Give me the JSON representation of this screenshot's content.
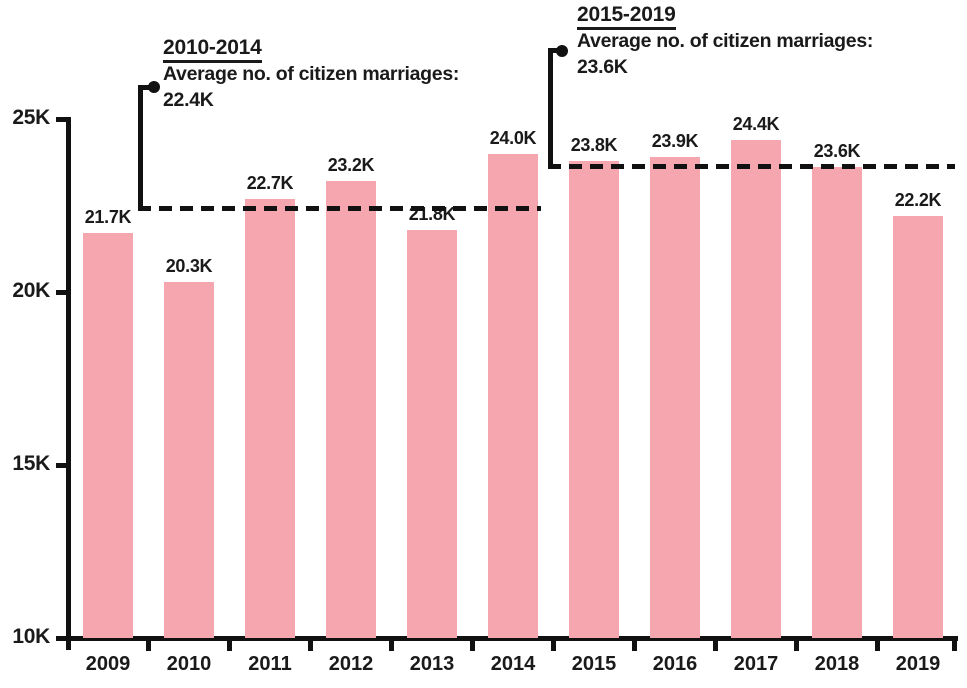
{
  "page": {
    "background": "#ffffff"
  },
  "chart_data": {
    "type": "bar",
    "title": "",
    "xlabel": "",
    "ylabel": "",
    "categories": [
      "2009",
      "2010",
      "2011",
      "2012",
      "2013",
      "2014",
      "2015",
      "2016",
      "2017",
      "2018",
      "2019"
    ],
    "values": [
      21700,
      20300,
      22700,
      23200,
      21800,
      24000,
      23800,
      23900,
      24400,
      23600,
      22200
    ],
    "value_labels": [
      "21.7K",
      "20.3K",
      "22.7K",
      "23.2K",
      "21.8K",
      "24.0K",
      "23.8K",
      "23.9K",
      "24.4K",
      "23.6K",
      "22.2K"
    ],
    "ylim": [
      10000,
      25000
    ],
    "y_ticks": [
      {
        "value": 25000,
        "label": "25K"
      },
      {
        "value": 20000,
        "label": "20K"
      },
      {
        "value": 15000,
        "label": "15K"
      },
      {
        "value": 10000,
        "label": "10K"
      }
    ],
    "grid": false,
    "bar_color": "#f6a6af",
    "axis_color": "#111111",
    "text_color": "#1a1a1a",
    "annotations": [
      {
        "period": "2010-2014",
        "label": "Average no. of citizen marriages:",
        "value": "22.4K",
        "average": 22400
      },
      {
        "period": "2015-2019",
        "label": "Average no. of citizen marriages:",
        "value": "23.6K",
        "average": 23600
      }
    ]
  }
}
